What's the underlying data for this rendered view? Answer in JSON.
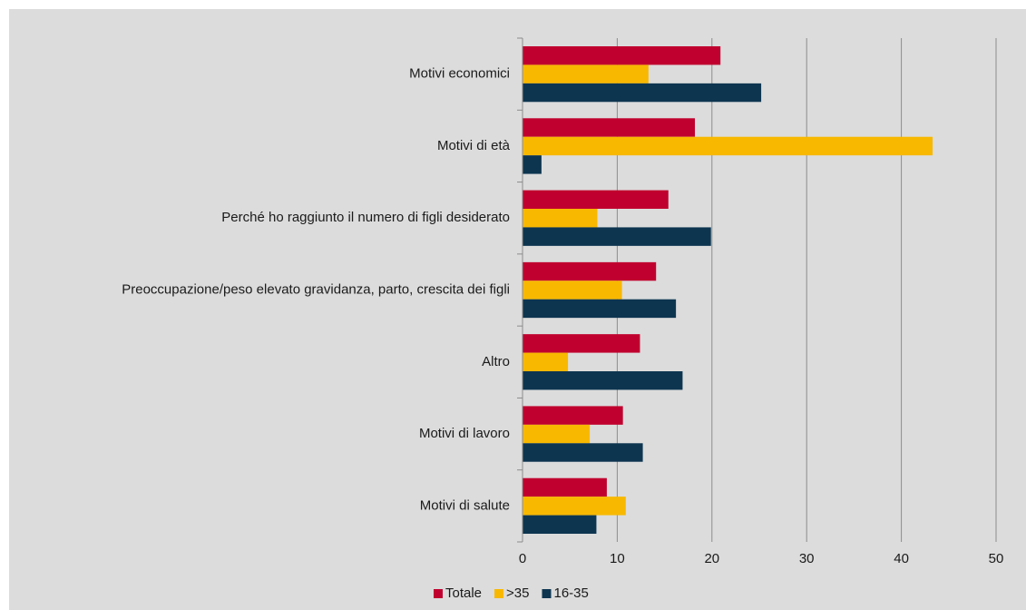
{
  "chart_data": {
    "type": "barh",
    "categories": [
      "Motivi economici",
      "Motivi di età",
      "Perché ho raggiunto il numero di figli desiderato",
      "Preoccupazione/peso elevato gravidanza, parto, crescita dei figli",
      "Altro",
      "Motivi di lavoro",
      "Motivi di salute"
    ],
    "series": [
      {
        "name": "Totale",
        "color": "#c0002e",
        "values": [
          20.9,
          18.2,
          15.4,
          14.1,
          12.4,
          10.6,
          8.9
        ]
      },
      {
        "name": ">35",
        "color": "#f8b800",
        "values": [
          13.3,
          43.3,
          7.9,
          10.5,
          4.8,
          7.1,
          10.9
        ]
      },
      {
        "name": "16-35",
        "color": "#0d3550",
        "values": [
          25.2,
          2.0,
          19.9,
          16.2,
          16.9,
          12.7,
          7.8
        ]
      }
    ],
    "xlim": [
      0,
      50
    ],
    "xticks": [
      0,
      10,
      20,
      30,
      40,
      50
    ],
    "grid": true,
    "legend": "bottom"
  }
}
